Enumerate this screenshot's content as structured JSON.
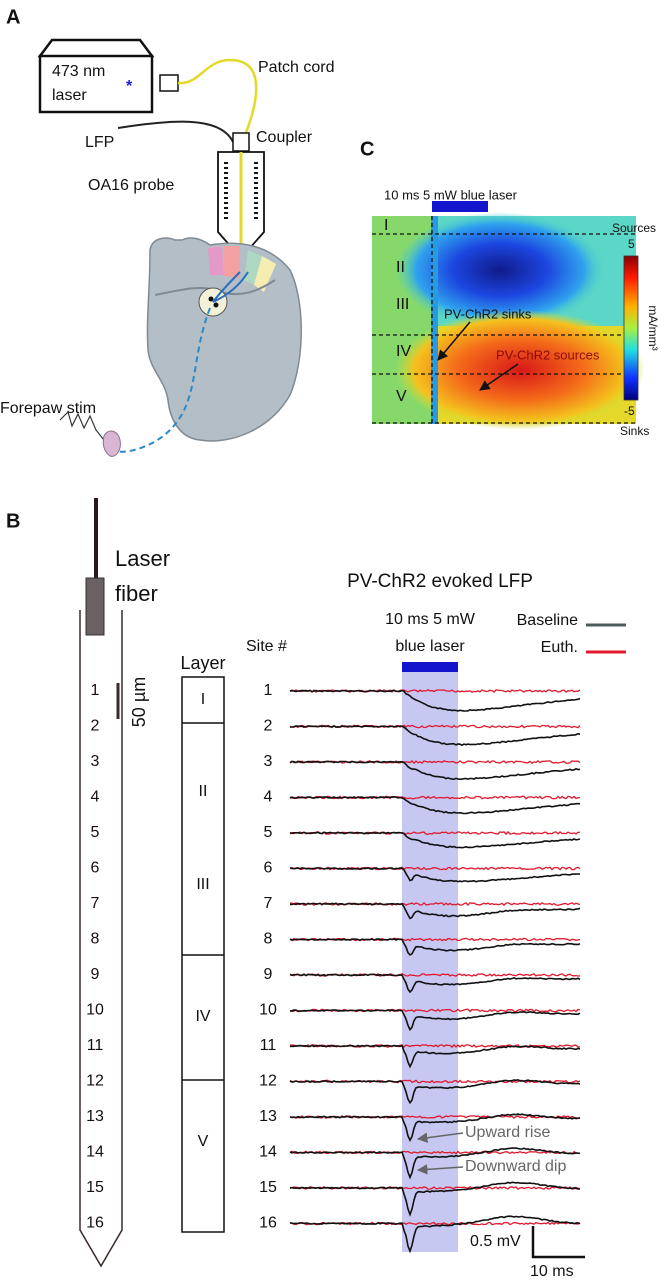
{
  "panel_a": {
    "label": "A",
    "laser": [
      "473 nm",
      "laser"
    ],
    "patch_cord": "Patch cord",
    "lfp": "LFP",
    "coupler": "Coupler",
    "probe": "OA16 probe",
    "forepaw": "Forepaw stim"
  },
  "panel_c": {
    "label": "C",
    "stim": "10 ms 5 mW blue laser",
    "colorbar": {
      "top_label": "Sources",
      "max": "5",
      "min": "-5",
      "bottom_label": "Sinks",
      "unit": "mA/mm³"
    },
    "layers": [
      "I",
      "II",
      "III",
      "IV",
      "V"
    ],
    "annotations": [
      "PV-ChR2 sinks",
      "PV-ChR2 sources"
    ]
  },
  "panel_b": {
    "label": "B",
    "fiber": [
      "Laser",
      "fiber"
    ],
    "scale": "50 µm",
    "layer_title": "Layer",
    "layers": [
      "I",
      "II",
      "III",
      "IV",
      "V"
    ],
    "sites": [
      "1",
      "2",
      "3",
      "4",
      "5",
      "6",
      "7",
      "8",
      "9",
      "10",
      "11",
      "12",
      "13",
      "14",
      "15",
      "16"
    ],
    "title": "PV-ChR2 evoked LFP",
    "stim": [
      "10 ms 5 mW",
      "blue laser"
    ],
    "site_header": "Site #",
    "legend": [
      {
        "name": "Baseline",
        "color": "#4f5a5a"
      },
      {
        "name": "Euth.",
        "color": "#e0182d"
      }
    ],
    "annotations": [
      "Upward rise",
      "Downward dip"
    ],
    "scalebar": {
      "v": "0.5 mV",
      "t": "10 ms"
    }
  }
}
